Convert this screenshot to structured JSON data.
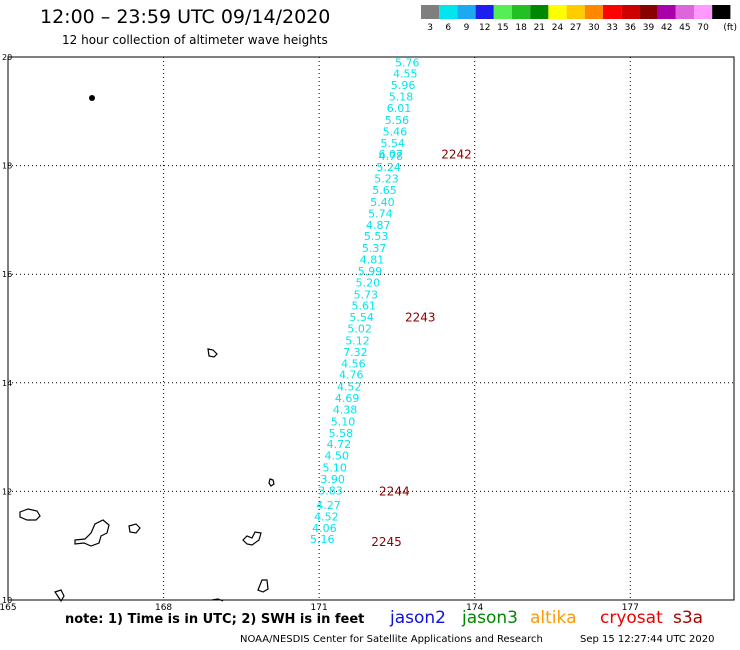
{
  "header": {
    "title": "12:00 – 23:59 UTC 09/14/2020",
    "subtitle": "12 hour collection of altimeter wave heights"
  },
  "legend": {
    "unit": "(ft)",
    "bins": [
      {
        "label": "3",
        "color": "#7f7f7f"
      },
      {
        "label": "6",
        "color": "#00e5ee"
      },
      {
        "label": "9",
        "color": "#1ea8f0"
      },
      {
        "label": "12",
        "color": "#1e1ef0"
      },
      {
        "label": "15",
        "color": "#55ee55"
      },
      {
        "label": "18",
        "color": "#22c022"
      },
      {
        "label": "21",
        "color": "#008800"
      },
      {
        "label": "24",
        "color": "#ffff00"
      },
      {
        "label": "27",
        "color": "#ffcc00"
      },
      {
        "label": "30",
        "color": "#ff8800"
      },
      {
        "label": "33",
        "color": "#ff0000"
      },
      {
        "label": "36",
        "color": "#cc0000"
      },
      {
        "label": "39",
        "color": "#880000"
      },
      {
        "label": "42",
        "color": "#aa00aa"
      },
      {
        "label": "45",
        "color": "#dd66dd"
      },
      {
        "label": "70",
        "color": "#ff99ff"
      },
      {
        "label": "",
        "color": "#000000"
      }
    ]
  },
  "map": {
    "lon_range": [
      165,
      179
    ],
    "lat_range": [
      10,
      20
    ],
    "lon_ticks": [
      "165",
      "168",
      "171",
      "174",
      "177"
    ],
    "lat_ticks": [
      "10",
      "12",
      "14",
      "16",
      "18",
      "20"
    ],
    "grid": "dotted",
    "track_color": "#00e5ee",
    "time_color": "#880000",
    "observations": [
      {
        "lon": 172.7,
        "lat": 19.9,
        "value": "5.76"
      },
      {
        "lon": 172.66,
        "lat": 19.7,
        "value": "4.55"
      },
      {
        "lon": 172.62,
        "lat": 19.48,
        "value": "5.96"
      },
      {
        "lon": 172.58,
        "lat": 19.27,
        "value": "5.18"
      },
      {
        "lon": 172.54,
        "lat": 19.06,
        "value": "6.01"
      },
      {
        "lon": 172.5,
        "lat": 18.84,
        "value": "5.56"
      },
      {
        "lon": 172.46,
        "lat": 18.63,
        "value": "5.46"
      },
      {
        "lon": 172.42,
        "lat": 18.42,
        "value": "5.54"
      },
      {
        "lon": 172.38,
        "lat": 18.21,
        "value": "6.07"
      },
      {
        "lon": 172.38,
        "lat": 18.18,
        "value": "4.78"
      },
      {
        "lon": 172.34,
        "lat": 17.97,
        "value": "5.24"
      },
      {
        "lon": 172.3,
        "lat": 17.76,
        "value": "5.23"
      },
      {
        "lon": 172.26,
        "lat": 17.55,
        "value": "5.65"
      },
      {
        "lon": 172.22,
        "lat": 17.33,
        "value": "5.40"
      },
      {
        "lon": 172.18,
        "lat": 17.12,
        "value": "5.74"
      },
      {
        "lon": 172.14,
        "lat": 16.91,
        "value": "4.87"
      },
      {
        "lon": 172.1,
        "lat": 16.7,
        "value": "5.53"
      },
      {
        "lon": 172.06,
        "lat": 16.48,
        "value": "5.37"
      },
      {
        "lon": 172.02,
        "lat": 16.27,
        "value": "4.81"
      },
      {
        "lon": 171.98,
        "lat": 16.06,
        "value": "5.99"
      },
      {
        "lon": 171.94,
        "lat": 15.85,
        "value": "5.20"
      },
      {
        "lon": 171.9,
        "lat": 15.63,
        "value": "5.73"
      },
      {
        "lon": 171.86,
        "lat": 15.42,
        "value": "5.61"
      },
      {
        "lon": 171.82,
        "lat": 15.21,
        "value": "5.54"
      },
      {
        "lon": 171.78,
        "lat": 15.0,
        "value": "5.02"
      },
      {
        "lon": 171.74,
        "lat": 14.78,
        "value": "5.12"
      },
      {
        "lon": 171.7,
        "lat": 14.57,
        "value": "7.32"
      },
      {
        "lon": 171.66,
        "lat": 14.36,
        "value": "4.56"
      },
      {
        "lon": 171.62,
        "lat": 14.15,
        "value": "4.76"
      },
      {
        "lon": 171.58,
        "lat": 13.93,
        "value": "4.52"
      },
      {
        "lon": 171.54,
        "lat": 13.72,
        "value": "4.69"
      },
      {
        "lon": 171.5,
        "lat": 13.51,
        "value": "4.38"
      },
      {
        "lon": 171.46,
        "lat": 13.29,
        "value": "5.10"
      },
      {
        "lon": 171.42,
        "lat": 13.08,
        "value": "5.58"
      },
      {
        "lon": 171.38,
        "lat": 12.87,
        "value": "4.72"
      },
      {
        "lon": 171.34,
        "lat": 12.66,
        "value": "4.50"
      },
      {
        "lon": 171.3,
        "lat": 12.44,
        "value": "5.10"
      },
      {
        "lon": 171.26,
        "lat": 12.23,
        "value": "3.90"
      },
      {
        "lon": 171.22,
        "lat": 12.02,
        "value": "3.83"
      },
      {
        "lon": 171.18,
        "lat": 11.75,
        "value": "4.27"
      },
      {
        "lon": 171.14,
        "lat": 11.54,
        "value": "4.52"
      },
      {
        "lon": 171.1,
        "lat": 11.33,
        "value": "4.06"
      },
      {
        "lon": 171.06,
        "lat": 11.12,
        "value": "5.16"
      }
    ],
    "time_labels": [
      {
        "lon": 173.65,
        "lat": 18.2,
        "label": "2242"
      },
      {
        "lon": 172.95,
        "lat": 15.2,
        "label": "2243"
      },
      {
        "lon": 172.45,
        "lat": 12.0,
        "label": "2244"
      },
      {
        "lon": 172.3,
        "lat": 11.07,
        "label": "2245"
      }
    ]
  },
  "note": "note: 1) Time is in UTC; 2) SWH is in feet",
  "satellites": [
    {
      "label": "jason2",
      "color": "#1010dd"
    },
    {
      "label": "jason3",
      "color": "#008800"
    },
    {
      "label": "altika",
      "color": "#ff9900"
    },
    {
      "label": "cryosat",
      "color": "#ee0000"
    },
    {
      "label": "s3a",
      "color": "#aa0000"
    }
  ],
  "footer": {
    "credit": "NOAA/NESDIS Center for Satellite Applications and Research",
    "timestamp": "Sep 15 12:27:44 UTC 2020"
  }
}
